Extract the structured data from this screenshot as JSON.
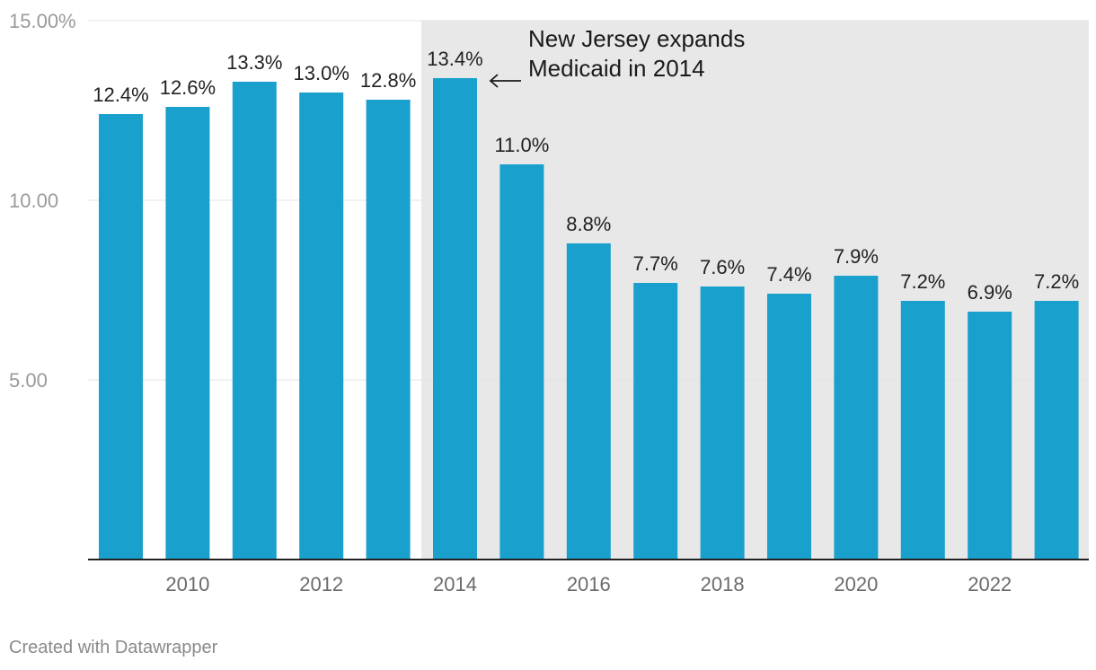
{
  "chart_data": {
    "type": "bar",
    "title": "",
    "xlabel": "",
    "ylabel": "",
    "ylim": [
      0,
      15
    ],
    "grid": true,
    "y_ticks": [
      {
        "value": 5,
        "label": "5.00"
      },
      {
        "value": 10,
        "label": "10.00"
      },
      {
        "value": 15,
        "label": "15.00%"
      }
    ],
    "categories": [
      "2009",
      "2010",
      "2011",
      "2012",
      "2013",
      "2014",
      "2015",
      "2016",
      "2017",
      "2018",
      "2019",
      "2020",
      "2021",
      "2022",
      "2023"
    ],
    "values": [
      12.4,
      12.6,
      13.3,
      13.0,
      12.8,
      13.4,
      11.0,
      8.8,
      7.7,
      7.6,
      7.4,
      7.9,
      7.2,
      6.9,
      7.2
    ],
    "value_labels": [
      "12.4%",
      "12.6%",
      "13.3%",
      "13.0%",
      "12.8%",
      "13.4%",
      "11.0%",
      "8.8%",
      "7.7%",
      "7.6%",
      "7.4%",
      "7.9%",
      "7.2%",
      "6.9%",
      "7.2%"
    ],
    "x_tick_labels": [
      "",
      "2010",
      "",
      "2012",
      "",
      "2014",
      "",
      "2016",
      "",
      "2018",
      "",
      "2020",
      "",
      "2022",
      ""
    ],
    "bar_color": "#1aa0cc",
    "highlight_range": {
      "from": "2014",
      "to": "2023",
      "color": "#e8e8e8"
    },
    "annotation": {
      "lines": [
        "New Jersey expands",
        "Medicaid in 2014"
      ],
      "target": "2014",
      "arrow": "left"
    }
  },
  "credit": "Created with Datawrapper"
}
